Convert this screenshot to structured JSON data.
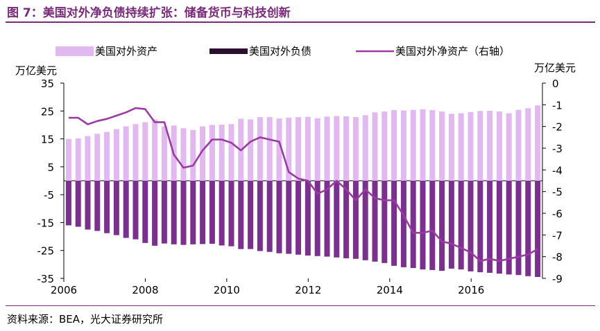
{
  "title": "图 7：美国对外净负债持续扩张：储备货币与科技创新",
  "source": "资料来源：BEA，光大证券研究所",
  "chart_data": {
    "type": "bar",
    "colors": {
      "assets": "#e2b8f1",
      "liabilities": "#7b2f8f",
      "net": "#9b3aa3",
      "legend_liab": "#2a0f2e"
    },
    "left_axis": {
      "unit": "万亿美元",
      "ylim": [
        -35,
        35
      ],
      "ticks": [
        35,
        25,
        15,
        5,
        -5,
        -15,
        -25,
        -35
      ]
    },
    "right_axis": {
      "unit": "万亿美元",
      "ylim": [
        -9,
        0
      ],
      "ticks": [
        0,
        -1,
        -2,
        -3,
        -4,
        -5,
        -6,
        -7,
        -8,
        -9
      ]
    },
    "x_ticks": [
      "2006",
      "2008",
      "2010",
      "2012",
      "2014",
      "2016"
    ],
    "x_range": [
      2006.0,
      2017.75
    ],
    "legend_position": "top",
    "series": [
      {
        "name": "美国对外资产",
        "kind": "bar",
        "axis": "left",
        "values": [
          15,
          15.2,
          16,
          16.8,
          17.5,
          18.5,
          19.5,
          20.3,
          21,
          22,
          19.5,
          19.8,
          18.8,
          18.2,
          19.5,
          20,
          20.1,
          20.3,
          22.2,
          22,
          22.8,
          22.8,
          22.3,
          22.6,
          22.8,
          22.9,
          22.4,
          23,
          23.2,
          23.1,
          22.8,
          23.5,
          24.5,
          24.8,
          25.3,
          25.2,
          25.4,
          25.6,
          25.3,
          24.8,
          24,
          24.2,
          24.6,
          25,
          25.1,
          24.8,
          24.2,
          25.4,
          26,
          27
        ]
      },
      {
        "name": "美国对外负债",
        "kind": "bar",
        "axis": "left",
        "values": [
          -16,
          -16.5,
          -17.5,
          -18,
          -18.8,
          -19.5,
          -20.5,
          -21,
          -22.3,
          -23.3,
          -22.5,
          -22.8,
          -23,
          -22.8,
          -22.7,
          -22.6,
          -23.2,
          -23.5,
          -24.5,
          -24.5,
          -25.2,
          -25.5,
          -26,
          -26.2,
          -26.5,
          -26.8,
          -27,
          -27.2,
          -27.5,
          -27.8,
          -28,
          -28.5,
          -29,
          -29.5,
          -30.5,
          -31,
          -31.3,
          -31.8,
          -32,
          -32.3,
          -31.5,
          -31.8,
          -32.5,
          -32.8,
          -33,
          -33.3,
          -33.6,
          -33.8,
          -34.2,
          -34.5
        ]
      },
      {
        "name": "美国对外净资产（右轴）",
        "kind": "line",
        "axis": "right",
        "values": [
          -1.6,
          -1.6,
          -1.9,
          -1.75,
          -1.65,
          -1.5,
          -1.35,
          -1.15,
          -1.2,
          -1.8,
          -1.8,
          -3.3,
          -3.9,
          -3.8,
          -3.1,
          -2.6,
          -2.6,
          -2.75,
          -3.1,
          -2.7,
          -2.5,
          -2.6,
          -2.7,
          -4.1,
          -4.4,
          -4.5,
          -5.1,
          -4.9,
          -4.5,
          -4.9,
          -5.4,
          -4.9,
          -5.3,
          -5.4,
          -5.4,
          -6.1,
          -6.9,
          -6.9,
          -6.8,
          -7.3,
          -7.4,
          -7.6,
          -7.8,
          -8.2,
          -8.1,
          -8.2,
          -8.1,
          -8.0,
          -7.9,
          -7.65
        ]
      }
    ]
  }
}
